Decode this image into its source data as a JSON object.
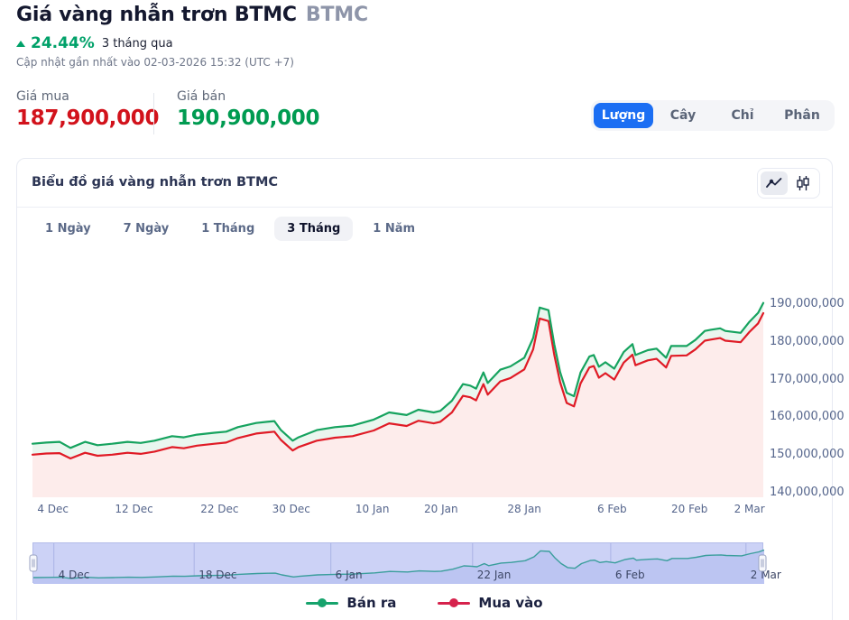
{
  "header": {
    "title": "Giá vàng nhẫn trơn BTMC",
    "ticker": "BTMC",
    "change_percent": "24.44%",
    "change_period": "3 tháng qua",
    "updated": "Cập nhật gần nhất vào 02-03-2026 15:32 (UTC +7)"
  },
  "prices": {
    "buy_label": "Giá mua",
    "buy_value": "187,900,000",
    "sell_label": "Giá bán",
    "sell_value": "190,900,000"
  },
  "unit_tabs": [
    {
      "label": "Lượng",
      "active": true
    },
    {
      "label": "Cây",
      "active": false
    },
    {
      "label": "Chỉ",
      "active": false
    },
    {
      "label": "Phân",
      "active": false
    }
  ],
  "card": {
    "title": "Biểu đồ giá vàng nhẫn trơn BTMC",
    "range_tabs": [
      {
        "label": "1 Ngày",
        "active": false
      },
      {
        "label": "7 Ngày",
        "active": false
      },
      {
        "label": "1 Tháng",
        "active": false
      },
      {
        "label": "3 Tháng",
        "active": true
      },
      {
        "label": "1 Năm",
        "active": false
      }
    ]
  },
  "icons": {
    "up_triangle": "up-triangle-icon",
    "line_chart": "line-chart-icon",
    "candlestick": "candlestick-icon",
    "nav_handle": "drag-handle-icon"
  },
  "colors": {
    "accent_blue": "#1b6ef3",
    "buy_red": "#d2121b",
    "sell_green": "#009b51",
    "percent_green": "#00a169"
  },
  "legend": {
    "items": [
      {
        "label": "Bán ra",
        "color": "#16a36c"
      },
      {
        "label": "Mua vào",
        "color": "#d6224c"
      }
    ]
  },
  "chart_data": {
    "type": "line",
    "title": "Biểu đồ giá vàng nhẫn trơn BTMC",
    "unit": "VND",
    "values_scale": 1000000,
    "ylim": [
      140000000,
      200000000
    ],
    "grid": false,
    "legend_position": "bottom",
    "yticks": [
      {
        "value": 190,
        "label": "190,000,000"
      },
      {
        "value": 180,
        "label": "180,000,000"
      },
      {
        "value": 170,
        "label": "170,000,000"
      },
      {
        "value": 160,
        "label": "160,000,000"
      },
      {
        "value": 150,
        "label": "150,000,000"
      },
      {
        "value": 140,
        "label": "140,000,000"
      }
    ],
    "xticks": [
      {
        "f": 0.028,
        "label": "4 Dec"
      },
      {
        "f": 0.139,
        "label": "12 Dec"
      },
      {
        "f": 0.256,
        "label": "22 Dec"
      },
      {
        "f": 0.354,
        "label": "30 Dec"
      },
      {
        "f": 0.465,
        "label": "10 Jan"
      },
      {
        "f": 0.559,
        "label": "20 Jan"
      },
      {
        "f": 0.673,
        "label": "28 Jan"
      },
      {
        "f": 0.793,
        "label": "6 Feb"
      },
      {
        "f": 0.899,
        "label": "20 Feb"
      },
      {
        "f": 0.981,
        "label": "2 Mar"
      }
    ],
    "navigator": {
      "line_color": "#3a9e9c",
      "area_color": "#bcc5f2",
      "background": "#ccd2f6",
      "labels": [
        {
          "f": 0.028,
          "label": "4 Dec"
        },
        {
          "f": 0.22,
          "label": "18 Dec"
        },
        {
          "f": 0.407,
          "label": "6 Jan"
        },
        {
          "f": 0.601,
          "label": "22 Jan"
        },
        {
          "f": 0.79,
          "label": "6 Feb"
        },
        {
          "f": 0.975,
          "label": "2 Mar"
        }
      ]
    },
    "series": [
      {
        "name": "Bán ra",
        "color": "#16a35f",
        "fill": "#eaf6ef"
      },
      {
        "name": "Mua vào",
        "color": "#e01b26",
        "fill": "#fdeceb"
      }
    ],
    "points_format": [
      "x_fraction",
      "sell_million_vnd",
      "buy_million_vnd"
    ],
    "points": [
      [
        0.0,
        153.0,
        150.1
      ],
      [
        0.019,
        153.3,
        150.4
      ],
      [
        0.037,
        153.5,
        150.5
      ],
      [
        0.052,
        151.9,
        149.1
      ],
      [
        0.072,
        153.5,
        150.6
      ],
      [
        0.089,
        152.6,
        149.8
      ],
      [
        0.109,
        153.0,
        150.1
      ],
      [
        0.13,
        153.5,
        150.6
      ],
      [
        0.148,
        153.2,
        150.3
      ],
      [
        0.167,
        153.8,
        150.9
      ],
      [
        0.191,
        155.0,
        152.1
      ],
      [
        0.207,
        154.7,
        151.8
      ],
      [
        0.225,
        155.4,
        152.5
      ],
      [
        0.249,
        155.9,
        153.0
      ],
      [
        0.265,
        156.2,
        153.3
      ],
      [
        0.281,
        157.4,
        154.5
      ],
      [
        0.306,
        158.5,
        155.7
      ],
      [
        0.321,
        158.8,
        156.0
      ],
      [
        0.331,
        159.0,
        156.2
      ],
      [
        0.34,
        156.6,
        154.0
      ],
      [
        0.356,
        153.8,
        151.2
      ],
      [
        0.364,
        154.7,
        152.1
      ],
      [
        0.389,
        156.6,
        153.8
      ],
      [
        0.414,
        157.4,
        154.6
      ],
      [
        0.438,
        157.8,
        155.0
      ],
      [
        0.467,
        159.4,
        156.5
      ],
      [
        0.488,
        161.3,
        158.4
      ],
      [
        0.512,
        160.6,
        157.7
      ],
      [
        0.528,
        162.0,
        159.1
      ],
      [
        0.549,
        161.3,
        158.4
      ],
      [
        0.558,
        161.7,
        158.8
      ],
      [
        0.574,
        164.4,
        161.3
      ],
      [
        0.589,
        168.8,
        165.7
      ],
      [
        0.599,
        168.4,
        165.3
      ],
      [
        0.607,
        167.6,
        164.5
      ],
      [
        0.617,
        171.9,
        168.8
      ],
      [
        0.623,
        169.1,
        166.0
      ],
      [
        0.64,
        172.6,
        169.5
      ],
      [
        0.654,
        173.5,
        170.4
      ],
      [
        0.673,
        175.8,
        172.7
      ],
      [
        0.685,
        181.0,
        178.0
      ],
      [
        0.694,
        189.1,
        186.2
      ],
      [
        0.706,
        188.4,
        185.5
      ],
      [
        0.714,
        179.4,
        176.6
      ],
      [
        0.722,
        172.0,
        169.3
      ],
      [
        0.731,
        166.5,
        163.8
      ],
      [
        0.741,
        165.6,
        162.9
      ],
      [
        0.75,
        171.9,
        169.0
      ],
      [
        0.762,
        176.1,
        173.2
      ],
      [
        0.768,
        176.5,
        173.6
      ],
      [
        0.775,
        173.4,
        170.5
      ],
      [
        0.784,
        174.6,
        171.7
      ],
      [
        0.796,
        172.9,
        170.0
      ],
      [
        0.809,
        177.3,
        174.5
      ],
      [
        0.821,
        179.4,
        176.6
      ],
      [
        0.825,
        176.5,
        173.8
      ],
      [
        0.842,
        177.8,
        175.1
      ],
      [
        0.854,
        178.2,
        175.5
      ],
      [
        0.867,
        175.8,
        173.2
      ],
      [
        0.874,
        178.9,
        176.3
      ],
      [
        0.895,
        178.9,
        176.4
      ],
      [
        0.907,
        180.5,
        178.0
      ],
      [
        0.92,
        182.9,
        180.3
      ],
      [
        0.928,
        183.2,
        180.6
      ],
      [
        0.941,
        183.6,
        181.0
      ],
      [
        0.948,
        182.9,
        180.3
      ],
      [
        0.969,
        182.4,
        179.9
      ],
      [
        0.981,
        185.3,
        182.6
      ],
      [
        0.993,
        187.7,
        184.9
      ],
      [
        1.0,
        190.3,
        187.6
      ]
    ]
  }
}
